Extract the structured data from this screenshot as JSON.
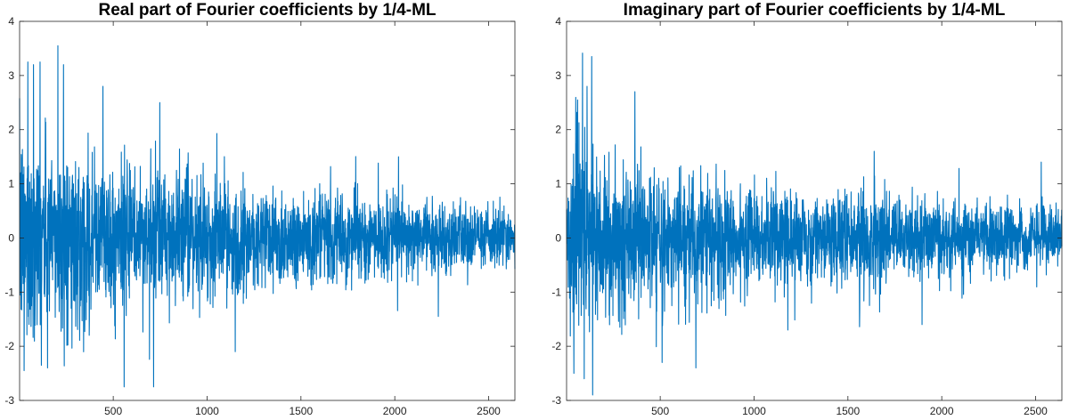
{
  "chart_data": [
    {
      "type": "line",
      "title": "Real part of Fourier coefficients by 1/4-ML",
      "xlabel": "",
      "ylabel": "",
      "xlim": [
        1,
        2640
      ],
      "ylim": [
        -3,
        4
      ],
      "xticks": [
        500,
        1000,
        1500,
        2000,
        2500
      ],
      "xtick_labels": [
        "500",
        "1000",
        "1500",
        "2000",
        "2500"
      ],
      "yticks": [
        -3,
        -2,
        -1,
        0,
        1,
        2,
        3,
        4
      ],
      "ytick_labels": [
        "-3",
        "-2",
        "-1",
        "0",
        "1",
        "2",
        "3",
        "4"
      ],
      "grid": false,
      "legend": "none",
      "color": "#0072BD",
      "series": [
        {
          "n_points": 2640,
          "envelope": {
            "x": [
              1,
              50,
              100,
              200,
              300,
              400,
              500,
              750,
              1000,
              1250,
              1500,
              1750,
              2000,
              2250,
              2500,
              2640
            ],
            "amplitude": [
              1.5,
              1.6,
              1.5,
              1.35,
              1.25,
              1.15,
              1.05,
              0.95,
              0.85,
              0.78,
              0.7,
              0.63,
              0.56,
              0.5,
              0.45,
              0.42
            ]
          },
          "peaks": [
            {
              "x": 45,
              "y": 3.25
            },
            {
              "x": 75,
              "y": 3.2
            },
            {
              "x": 110,
              "y": 3.25
            },
            {
              "x": 205,
              "y": 3.55
            },
            {
              "x": 235,
              "y": 3.2
            },
            {
              "x": 445,
              "y": 2.8
            },
            {
              "x": 748,
              "y": 2.5
            },
            {
              "x": 558,
              "y": -2.75
            },
            {
              "x": 715,
              "y": -2.75
            },
            {
              "x": 25,
              "y": -2.45
            },
            {
              "x": 150,
              "y": -2.4
            },
            {
              "x": 1150,
              "y": -2.1
            },
            {
              "x": 2020,
              "y": 1.5
            },
            {
              "x": 2232,
              "y": -1.45
            }
          ]
        }
      ]
    },
    {
      "type": "line",
      "title": "Imaginary part of Fourier coefficients by 1/4-ML",
      "xlabel": "",
      "ylabel": "",
      "xlim": [
        1,
        2640
      ],
      "ylim": [
        -3,
        4
      ],
      "xticks": [
        500,
        1000,
        1500,
        2000,
        2500
      ],
      "xtick_labels": [
        "500",
        "1000",
        "1500",
        "2000",
        "2500"
      ],
      "yticks": [
        -3,
        -2,
        -1,
        0,
        1,
        2,
        3,
        4
      ],
      "ytick_labels": [
        "-3",
        "-2",
        "-1",
        "0",
        "1",
        "2",
        "3",
        "4"
      ],
      "grid": false,
      "legend": "none",
      "color": "#0072BD",
      "series": [
        {
          "n_points": 2640,
          "envelope": {
            "x": [
              1,
              50,
              100,
              200,
              300,
              400,
              500,
              750,
              1000,
              1250,
              1500,
              1750,
              2000,
              2250,
              2500,
              2640
            ],
            "amplitude": [
              1.4,
              1.5,
              1.4,
              1.25,
              1.15,
              1.05,
              0.95,
              0.85,
              0.78,
              0.72,
              0.66,
              0.6,
              0.55,
              0.5,
              0.45,
              0.42
            ]
          },
          "peaks": [
            {
              "x": 135,
              "y": 3.35
            },
            {
              "x": 110,
              "y": 2.8
            },
            {
              "x": 365,
              "y": 2.7
            },
            {
              "x": 60,
              "y": 2.55
            },
            {
              "x": 140,
              "y": -2.9
            },
            {
              "x": 95,
              "y": -2.6
            },
            {
              "x": 40,
              "y": -2.5
            },
            {
              "x": 510,
              "y": -2.3
            },
            {
              "x": 690,
              "y": -2.4
            },
            {
              "x": 1180,
              "y": -1.7
            },
            {
              "x": 1895,
              "y": -1.6
            },
            {
              "x": 1640,
              "y": 1.6
            },
            {
              "x": 2530,
              "y": 1.4
            }
          ]
        }
      ]
    }
  ]
}
